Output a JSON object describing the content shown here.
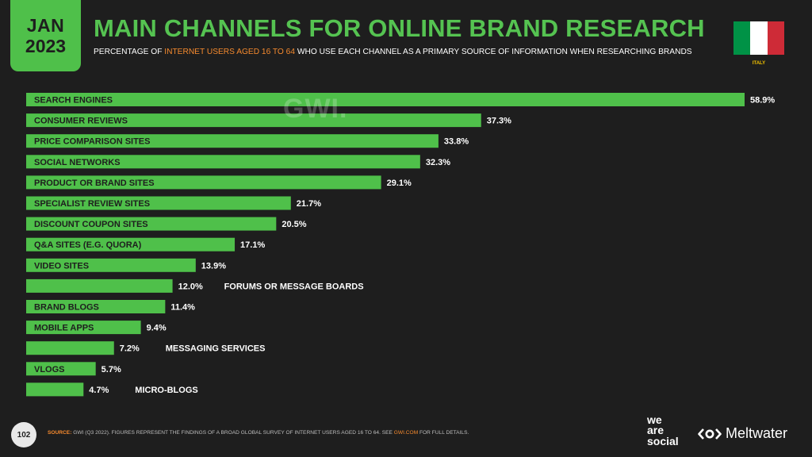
{
  "header": {
    "month": "JAN",
    "year": "2023",
    "title": "MAIN CHANNELS FOR ONLINE BRAND RESEARCH",
    "subtitle_pre": "PERCENTAGE OF ",
    "subtitle_highlight": "INTERNET USERS AGED 16 TO 64",
    "subtitle_post": " WHO USE EACH CHANNEL AS A PRIMARY SOURCE OF INFORMATION WHEN RESEARCHING BRANDS",
    "country": "ITALY"
  },
  "colors": {
    "bar": "#4fc04a",
    "title": "#55c351",
    "highlight": "#f58a2e",
    "flag_green": "#009246",
    "flag_white": "#ffffff",
    "flag_red": "#ce2b37"
  },
  "watermark": "GWI.",
  "chart_data": {
    "type": "bar",
    "orientation": "horizontal",
    "unit": "%",
    "xlim": [
      0,
      58.9
    ],
    "grid": false,
    "categories": [
      "SEARCH ENGINES",
      "CONSUMER REVIEWS",
      "PRICE COMPARISON SITES",
      "SOCIAL NETWORKS",
      "PRODUCT OR BRAND SITES",
      "SPECIALIST REVIEW SITES",
      "DISCOUNT COUPON SITES",
      "Q&A SITES (E.G. QUORA)",
      "VIDEO SITES",
      "FORUMS OR MESSAGE BOARDS",
      "BRAND BLOGS",
      "MOBILE APPS",
      "MESSAGING SERVICES",
      "VLOGS",
      "MICRO-BLOGS"
    ],
    "values": [
      58.9,
      37.3,
      33.8,
      32.3,
      29.1,
      21.7,
      20.5,
      17.1,
      13.9,
      12.0,
      11.4,
      9.4,
      7.2,
      5.7,
      4.7
    ],
    "value_labels": [
      "58.9%",
      "37.3%",
      "33.8%",
      "32.3%",
      "29.1%",
      "21.7%",
      "20.5%",
      "17.1%",
      "13.9%",
      "12.0%",
      "11.4%",
      "9.4%",
      "7.2%",
      "5.7%",
      "4.7%"
    ]
  },
  "footer": {
    "page_number": "102",
    "source_label": "SOURCE:",
    "source_text": " GWI (Q3 2022). FIGURES REPRESENT THE FINDINGS OF A BROAD GLOBAL SURVEY OF INTERNET USERS AGED 16 TO 64. SEE ",
    "source_link": "GWI.COM",
    "source_end": " FOR FULL DETAILS.",
    "logo_we": "we",
    "logo_are": "are",
    "logo_social": "social",
    "logo_meltwater": "Meltwater"
  }
}
